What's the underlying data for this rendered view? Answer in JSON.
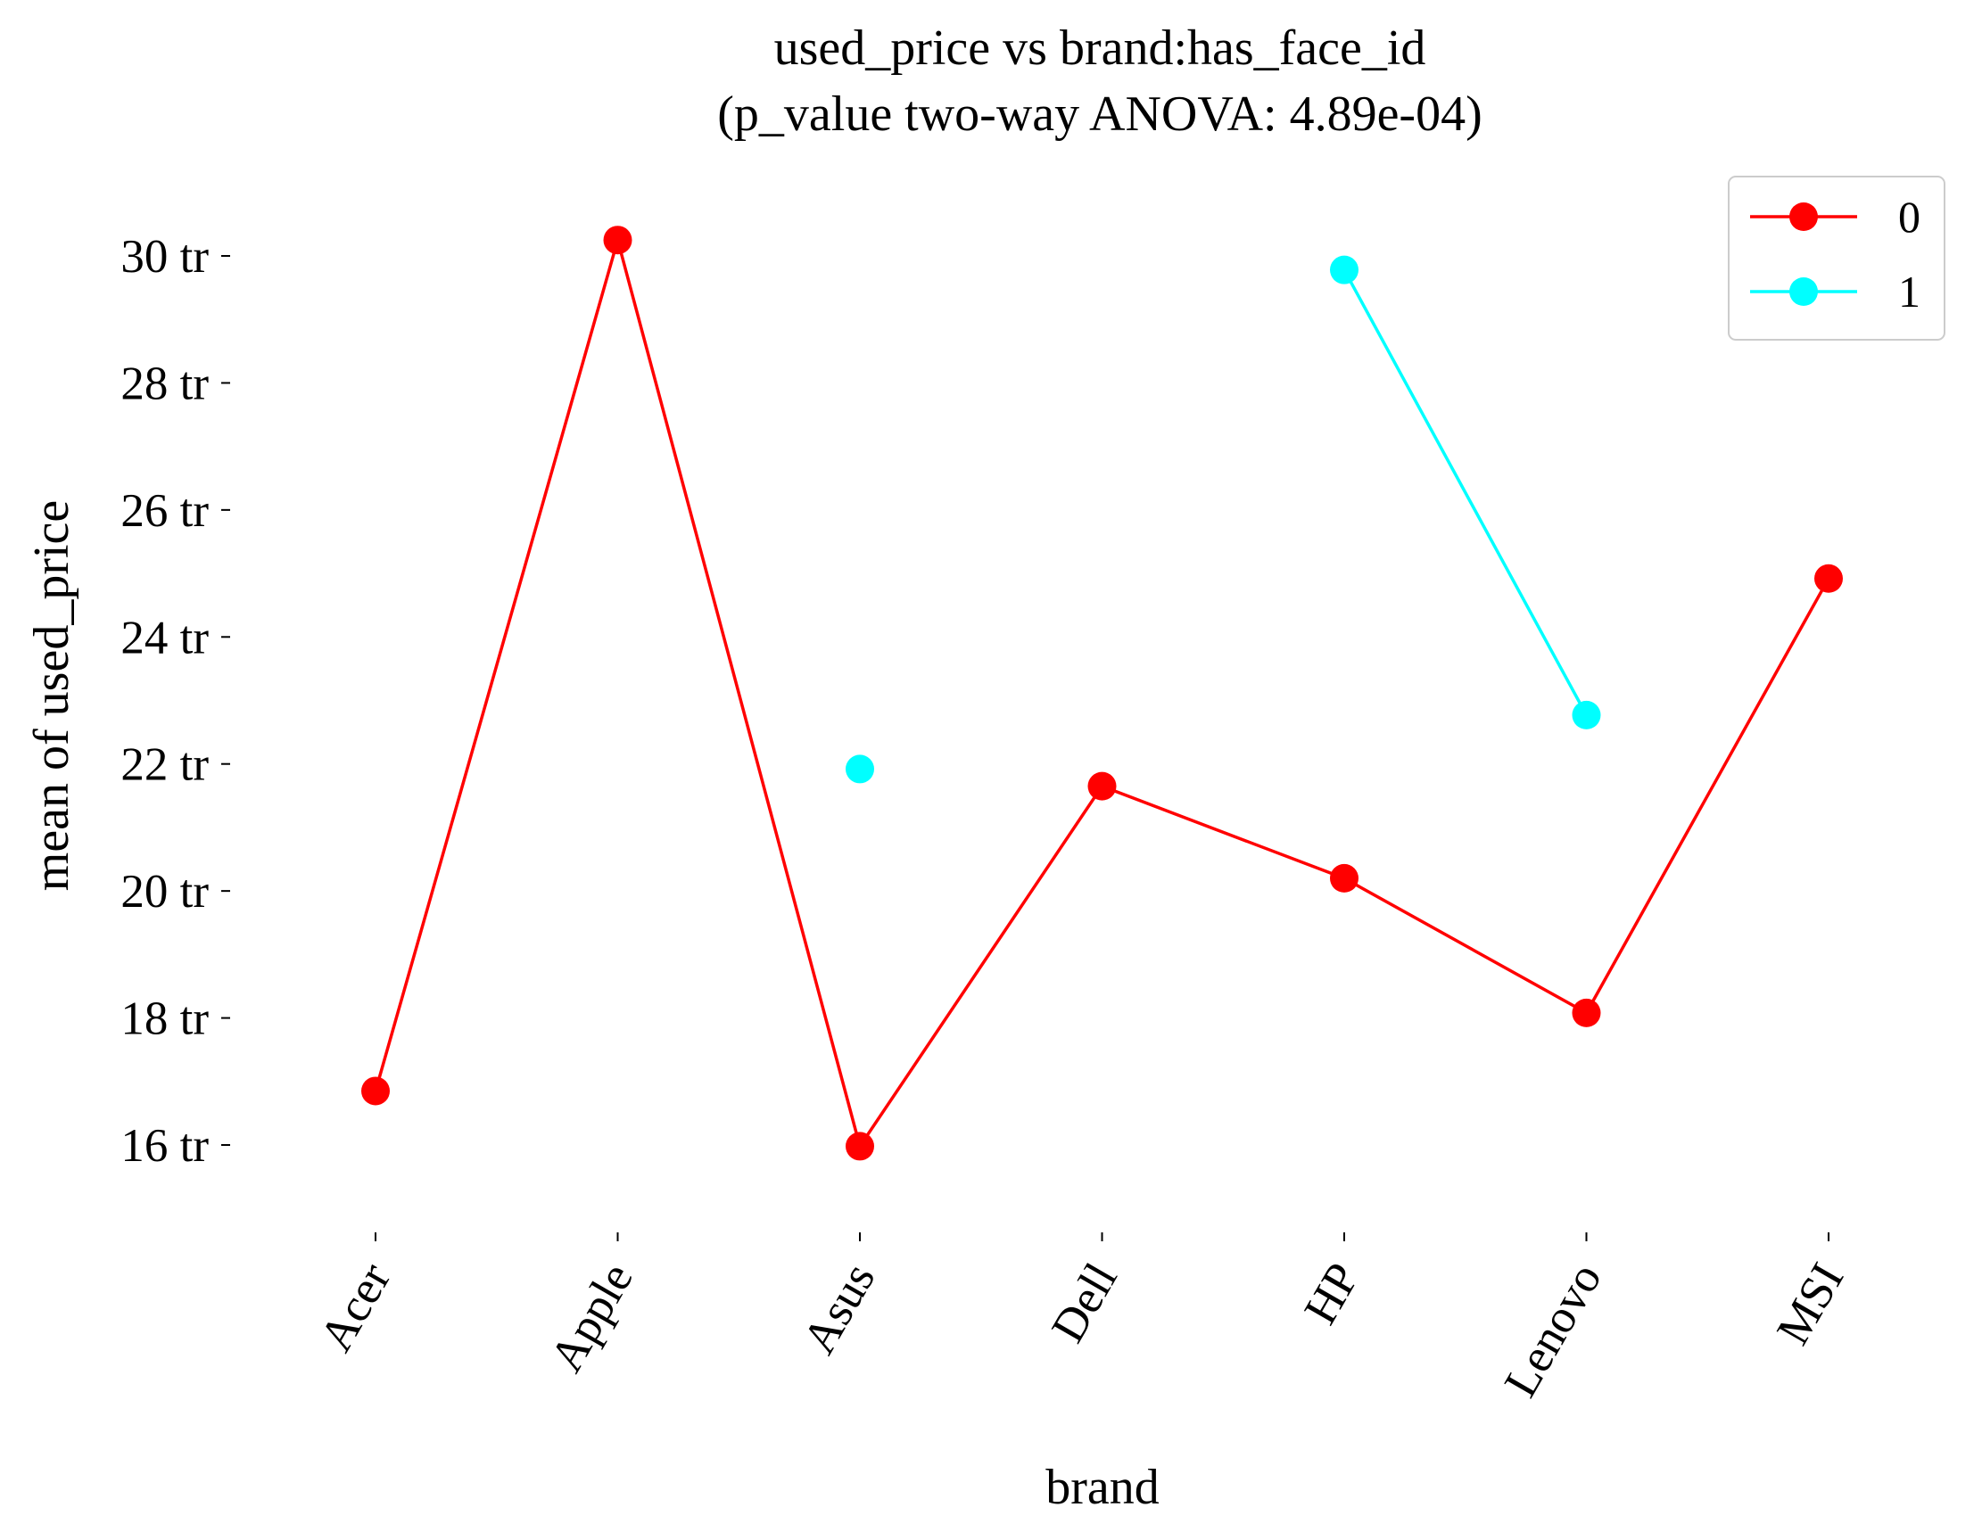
{
  "chart_data": {
    "type": "line",
    "title": [
      "used_price vs brand:has_face_id",
      "(p_value two-way ANOVA: 4.89e-04)"
    ],
    "xlabel": "brand",
    "ylabel": "mean of used_price",
    "categories": [
      "Acer",
      "Apple",
      "Asus",
      "Dell",
      "HP",
      "Lenovo",
      "MSI"
    ],
    "y_ticks": [
      16,
      18,
      20,
      22,
      24,
      26,
      28,
      30
    ],
    "y_tick_labels": [
      "16 tr",
      "18 tr",
      "20 tr",
      "22 tr",
      "24 tr",
      "26 tr",
      "28 tr",
      "30 tr"
    ],
    "ylim": [
      14.9,
      31.3
    ],
    "grid": false,
    "legend_position": "top-right",
    "series": [
      {
        "name": "0",
        "color": "#ff0000",
        "values": [
          16.85,
          30.25,
          15.98,
          21.65,
          20.2,
          18.08,
          24.92
        ]
      },
      {
        "name": "1",
        "color": "#00ffff",
        "values": [
          null,
          null,
          21.92,
          null,
          29.78,
          22.77,
          null
        ]
      }
    ]
  }
}
